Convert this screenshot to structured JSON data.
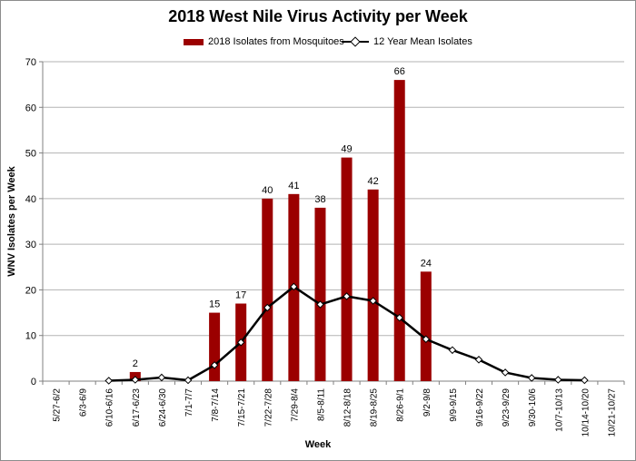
{
  "chart_data": {
    "type": "bar",
    "title": "2018 West Nile Virus Activity per Week",
    "xlabel": "Week",
    "ylabel": "WNV Isolates per Week",
    "ylim": [
      0,
      70
    ],
    "yticks": [
      0,
      10,
      20,
      30,
      40,
      50,
      60,
      70
    ],
    "grid": true,
    "legend_position": "top-center",
    "categories": [
      "5/27-6/2",
      "6/3-6/9",
      "6/10-6/16",
      "6/17-6/23",
      "6/24-6/30",
      "7/1-7/7",
      "7/8-7/14",
      "7/15-7/21",
      "7/22-7/28",
      "7/29-8/4",
      "8/5-8/11",
      "8/12-8/18",
      "8/19-8/25",
      "8/26-9/1",
      "9/2-9/8",
      "9/9-9/15",
      "9/16-9/22",
      "9/23-9/29",
      "9/30-10/6",
      "10/7-10/13",
      "10/14-10/20",
      "10/21-10/27"
    ],
    "series": [
      {
        "name": "2018 Isolates from Mosquitoes",
        "type": "bar",
        "color": "#9b0000",
        "values": [
          null,
          null,
          null,
          2,
          null,
          null,
          15,
          17,
          40,
          41,
          38,
          49,
          42,
          66,
          24,
          null,
          null,
          null,
          null,
          null,
          null,
          null
        ],
        "data_labels": [
          "",
          "",
          "",
          "2",
          "",
          "",
          "15",
          "17",
          "40",
          "41",
          "38",
          "49",
          "42",
          "66",
          "24",
          "",
          "",
          "",
          "",
          "",
          "",
          ""
        ]
      },
      {
        "name": "12 Year Mean Isolates",
        "type": "line",
        "color": "#000000",
        "values": [
          null,
          null,
          0.1,
          0.3,
          0.8,
          0.2,
          3.5,
          8.5,
          16.1,
          20.7,
          16.8,
          18.6,
          17.6,
          13.9,
          9.2,
          6.8,
          4.7,
          1.9,
          0.7,
          0.3,
          0.2,
          null
        ]
      }
    ]
  }
}
